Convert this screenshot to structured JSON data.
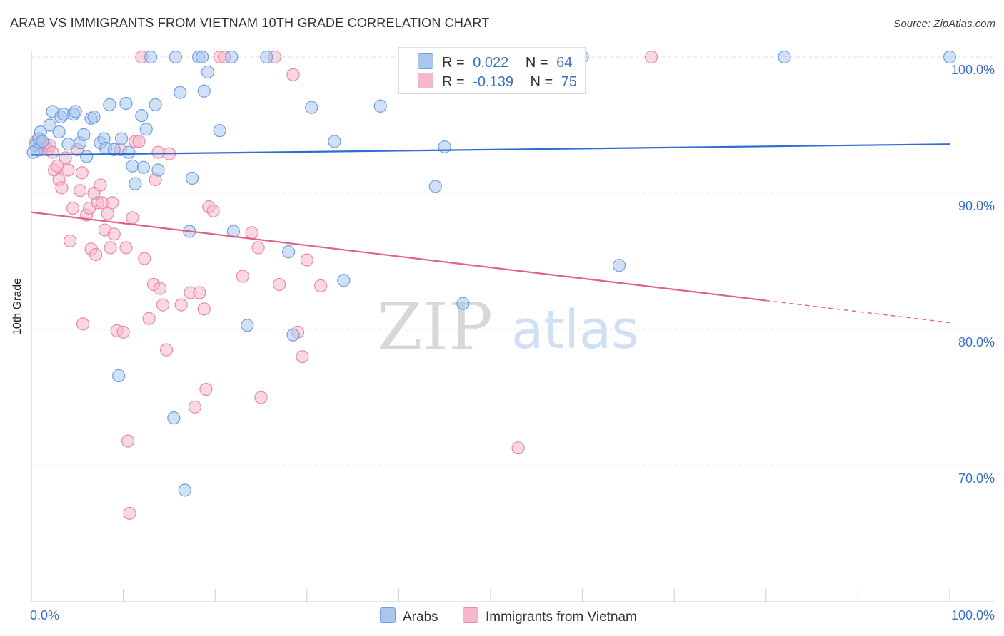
{
  "title": "ARAB VS IMMIGRANTS FROM VIETNAM 10TH GRADE CORRELATION CHART",
  "source": "Source: ZipAtlas.com",
  "watermark": {
    "zip": "ZIP",
    "atlas": "atlas"
  },
  "legend_top": {
    "rows": [
      {
        "r_label": "R =",
        "r_value": "0.022",
        "n_label": "N =",
        "n_value": "64"
      },
      {
        "r_label": "R =",
        "r_value": "-0.139",
        "n_label": "N =",
        "n_value": "75"
      }
    ]
  },
  "legend_bottom": {
    "arabs": "Arabs",
    "vietnam": "Immigrants from Vietnam"
  },
  "colors": {
    "arabs_fill": "#a9c6ef",
    "arabs_stroke": "#6f9fe0",
    "arabs_line": "#2f6fcf",
    "vietnam_fill": "#f6b8cb",
    "vietnam_stroke": "#ea88a8",
    "vietnam_line": "#e0608f",
    "axis_text": "#3a6fc4",
    "grid": "#e2e2e2"
  },
  "chart_data": {
    "type": "scatter",
    "xlabel": "",
    "ylabel": "10th Grade",
    "xlim": [
      0,
      100
    ],
    "ylim": [
      59,
      102
    ],
    "x_tick_labels": [
      "0.0%",
      "100.0%"
    ],
    "y_ticks": [
      {
        "value": 70,
        "label": "70.0%"
      },
      {
        "value": 80,
        "label": "80.0%"
      },
      {
        "value": 90,
        "label": "90.0%"
      },
      {
        "value": 100,
        "label": "100.0%"
      }
    ],
    "grid": true,
    "legend_position": "top-center",
    "series": [
      {
        "name": "Arabs",
        "trend": {
          "x": [
            0,
            100
          ],
          "y": [
            92.8,
            93.6
          ],
          "dashed_from": null
        },
        "points": [
          [
            0.4,
            93.5
          ],
          [
            0.6,
            93.2
          ],
          [
            1.0,
            94.5
          ],
          [
            0.8,
            94.0
          ],
          [
            1.2,
            93.8
          ],
          [
            2.0,
            95.0
          ],
          [
            2.3,
            96.0
          ],
          [
            3.0,
            94.5
          ],
          [
            3.2,
            95.6
          ],
          [
            3.5,
            95.8
          ],
          [
            4.0,
            93.6
          ],
          [
            4.6,
            95.8
          ],
          [
            4.8,
            96.0
          ],
          [
            5.3,
            93.7
          ],
          [
            5.7,
            94.3
          ],
          [
            6.0,
            92.7
          ],
          [
            6.5,
            95.5
          ],
          [
            6.8,
            95.6
          ],
          [
            7.5,
            93.7
          ],
          [
            7.9,
            94.0
          ],
          [
            8.1,
            93.3
          ],
          [
            8.5,
            96.5
          ],
          [
            9.0,
            93.2
          ],
          [
            9.5,
            76.6
          ],
          [
            9.8,
            94.0
          ],
          [
            10.3,
            96.6
          ],
          [
            10.6,
            93.0
          ],
          [
            11.0,
            92.0
          ],
          [
            11.3,
            90.7
          ],
          [
            12.0,
            95.7
          ],
          [
            12.2,
            91.9
          ],
          [
            12.5,
            94.7
          ],
          [
            13.0,
            100.0
          ],
          [
            13.5,
            96.5
          ],
          [
            13.8,
            91.7
          ],
          [
            15.5,
            73.5
          ],
          [
            15.7,
            100.0
          ],
          [
            16.2,
            97.4
          ],
          [
            16.7,
            68.2
          ],
          [
            17.2,
            87.2
          ],
          [
            17.5,
            91.1
          ],
          [
            18.2,
            100.0
          ],
          [
            18.6,
            100.0
          ],
          [
            18.8,
            97.5
          ],
          [
            19.2,
            98.9
          ],
          [
            20.5,
            94.6
          ],
          [
            21.8,
            100.0
          ],
          [
            22.0,
            87.2
          ],
          [
            23.5,
            80.3
          ],
          [
            25.6,
            100.0
          ],
          [
            28.0,
            85.7
          ],
          [
            28.5,
            79.6
          ],
          [
            30.5,
            96.3
          ],
          [
            33.0,
            93.8
          ],
          [
            34.0,
            83.6
          ],
          [
            38.0,
            96.4
          ],
          [
            44.0,
            90.5
          ],
          [
            45.0,
            93.4
          ],
          [
            47.0,
            81.9
          ],
          [
            60.0,
            100.0
          ],
          [
            64.0,
            84.7
          ],
          [
            82.0,
            100.0
          ],
          [
            100.0,
            100.0
          ],
          [
            0.2,
            93.0
          ]
        ]
      },
      {
        "name": "Immigrants from Vietnam",
        "trend": {
          "x": [
            0,
            100
          ],
          "y": [
            88.6,
            80.5
          ],
          "dashed_from": 80
        },
        "points": [
          [
            0.5,
            93.8
          ],
          [
            0.8,
            94.0
          ],
          [
            1.0,
            93.2
          ],
          [
            1.2,
            93.8
          ],
          [
            1.5,
            93.5
          ],
          [
            1.8,
            93.2
          ],
          [
            2.0,
            93.5
          ],
          [
            2.3,
            93.0
          ],
          [
            2.5,
            91.7
          ],
          [
            2.8,
            92.0
          ],
          [
            3.0,
            91.0
          ],
          [
            3.3,
            90.4
          ],
          [
            3.7,
            92.6
          ],
          [
            4.0,
            91.7
          ],
          [
            4.2,
            86.5
          ],
          [
            4.5,
            88.9
          ],
          [
            5.0,
            93.2
          ],
          [
            5.3,
            90.2
          ],
          [
            5.5,
            91.5
          ],
          [
            5.6,
            80.4
          ],
          [
            6.0,
            88.4
          ],
          [
            6.3,
            88.9
          ],
          [
            6.5,
            85.9
          ],
          [
            6.8,
            90.0
          ],
          [
            7.0,
            85.5
          ],
          [
            7.2,
            89.3
          ],
          [
            7.5,
            90.6
          ],
          [
            7.7,
            89.3
          ],
          [
            8.0,
            87.3
          ],
          [
            8.3,
            88.5
          ],
          [
            8.6,
            86.0
          ],
          [
            8.8,
            89.3
          ],
          [
            9.0,
            87.0
          ],
          [
            9.3,
            79.9
          ],
          [
            9.7,
            93.2
          ],
          [
            10.0,
            79.8
          ],
          [
            10.3,
            86.0
          ],
          [
            10.5,
            71.8
          ],
          [
            10.7,
            66.5
          ],
          [
            11.0,
            88.2
          ],
          [
            11.3,
            93.8
          ],
          [
            11.7,
            93.8
          ],
          [
            12.0,
            100.0
          ],
          [
            12.3,
            85.2
          ],
          [
            12.8,
            80.8
          ],
          [
            13.3,
            83.3
          ],
          [
            13.5,
            91.0
          ],
          [
            13.8,
            93.0
          ],
          [
            14.0,
            83.0
          ],
          [
            14.3,
            81.8
          ],
          [
            14.7,
            78.5
          ],
          [
            15.0,
            92.9
          ],
          [
            16.3,
            81.8
          ],
          [
            17.3,
            82.7
          ],
          [
            17.8,
            74.3
          ],
          [
            18.3,
            82.7
          ],
          [
            18.8,
            81.5
          ],
          [
            19.0,
            75.6
          ],
          [
            19.3,
            89.0
          ],
          [
            19.8,
            88.7
          ],
          [
            20.5,
            100.0
          ],
          [
            21.0,
            100.0
          ],
          [
            23.0,
            83.9
          ],
          [
            24.0,
            87.1
          ],
          [
            24.7,
            86.0
          ],
          [
            25.0,
            75.0
          ],
          [
            26.5,
            100.0
          ],
          [
            27.0,
            83.3
          ],
          [
            28.5,
            98.7
          ],
          [
            29.0,
            79.8
          ],
          [
            29.5,
            78.0
          ],
          [
            30.0,
            85.1
          ],
          [
            31.5,
            83.2
          ],
          [
            53.0,
            71.3
          ],
          [
            67.5,
            100.0
          ]
        ]
      }
    ]
  }
}
